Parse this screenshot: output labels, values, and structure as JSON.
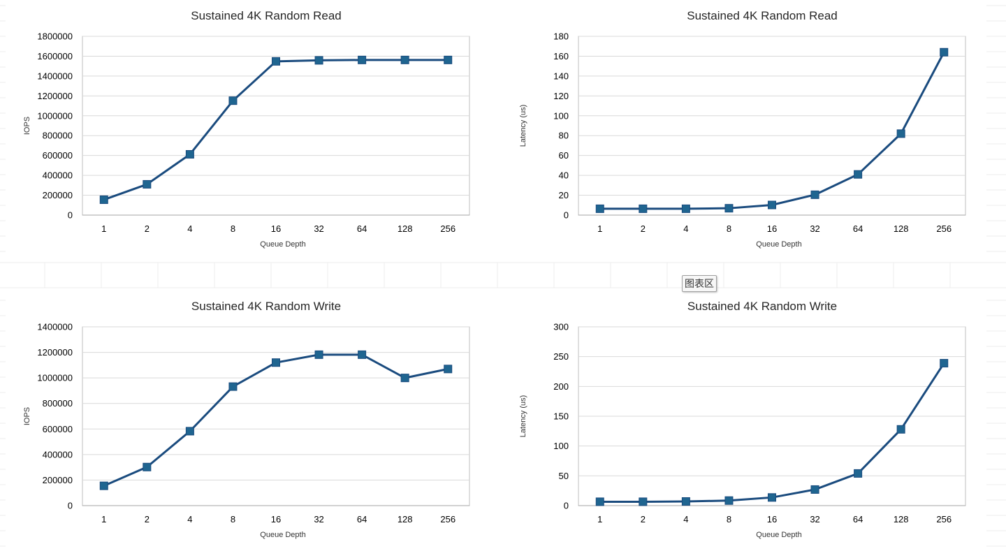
{
  "chart_area_label": "图表区",
  "colors": {
    "series": "#1a4b7e",
    "marker": "#1f6590",
    "grid": "#d9d9d9",
    "plot_border": "#bfbfbf",
    "sheet_grid": "#ececec"
  },
  "chart_data": [
    {
      "type": "line",
      "title": "Sustained 4K Random Read",
      "xlabel": "Queue Depth",
      "ylabel": "IOPS",
      "categories": [
        "1",
        "2",
        "4",
        "8",
        "16",
        "32",
        "64",
        "128",
        "256"
      ],
      "values": [
        155000,
        310000,
        612000,
        1152000,
        1548000,
        1558000,
        1562000,
        1562000,
        1562000
      ],
      "ylim": [
        0,
        1800000
      ],
      "yticks": [
        "0",
        "200000",
        "400000",
        "600000",
        "800000",
        "1000000",
        "1200000",
        "1400000",
        "1600000",
        "1800000"
      ],
      "grid": true,
      "marker": "square"
    },
    {
      "type": "line",
      "title": "Sustained 4K Random Read",
      "xlabel": "Queue Depth",
      "ylabel": "Latency (us)",
      "categories": [
        "1",
        "2",
        "4",
        "8",
        "16",
        "32",
        "64",
        "128",
        "256"
      ],
      "values": [
        6.4,
        6.4,
        6.4,
        6.9,
        10.2,
        20.5,
        41,
        82,
        164
      ],
      "ylim": [
        0,
        180
      ],
      "yticks": [
        "0",
        "20",
        "40",
        "60",
        "80",
        "100",
        "120",
        "140",
        "160",
        "180"
      ],
      "grid": true,
      "marker": "square"
    },
    {
      "type": "line",
      "title": "Sustained 4K Random Write",
      "xlabel": "Queue Depth",
      "ylabel": "IOPS",
      "categories": [
        "1",
        "2",
        "4",
        "8",
        "16",
        "32",
        "64",
        "128",
        "256"
      ],
      "values": [
        155000,
        302000,
        583000,
        932000,
        1120000,
        1182000,
        1182000,
        1000000,
        1070000
      ],
      "ylim": [
        0,
        1400000
      ],
      "yticks": [
        "0",
        "200000",
        "400000",
        "600000",
        "800000",
        "1000000",
        "1200000",
        "1400000"
      ],
      "grid": true,
      "marker": "square"
    },
    {
      "type": "line",
      "title": "Sustained 4K Random Write",
      "xlabel": "Queue Depth",
      "ylabel": "Latency (us)",
      "categories": [
        "1",
        "2",
        "4",
        "8",
        "16",
        "32",
        "64",
        "128",
        "256"
      ],
      "values": [
        6.5,
        6.5,
        7,
        8.5,
        13.7,
        27,
        54,
        128,
        239
      ],
      "ylim": [
        0,
        300
      ],
      "yticks": [
        "0",
        "50",
        "100",
        "150",
        "200",
        "250",
        "300"
      ],
      "grid": true,
      "marker": "square"
    }
  ]
}
